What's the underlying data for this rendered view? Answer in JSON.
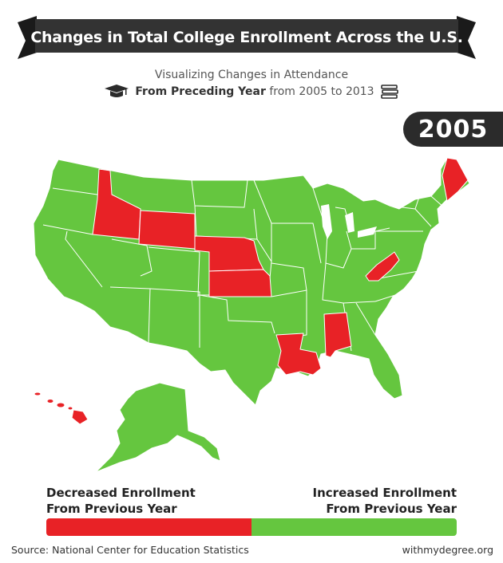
{
  "title": "Changes in Total College Enrollment Across the U.S.",
  "subtitle": "Visualizing Changes in Attendance",
  "subtitle2": {
    "bold": "From Preceding Year",
    "rest": "from 2005 to 2013"
  },
  "year": "2005",
  "legend": {
    "decreased": [
      "Decreased Enrollment",
      "From Previous Year"
    ],
    "increased": [
      "Increased Enrollment",
      "From Previous Year"
    ]
  },
  "footer": {
    "source": "Source: National Center for Education Statistics",
    "site": "withmydegree.org"
  },
  "colors": {
    "decreased": "#e82226",
    "increased": "#65c63f",
    "dark": "#2b2b2b"
  },
  "icons": {
    "left": "graduation-cap-icon",
    "right": "books-stack-icon"
  },
  "decreased_states": [
    "Idaho",
    "Wyoming",
    "Nebraska",
    "Kansas",
    "West Virginia",
    "Louisiana",
    "Alabama",
    "Maine",
    "Hawaii"
  ],
  "increased_states": [
    "all other states"
  ]
}
